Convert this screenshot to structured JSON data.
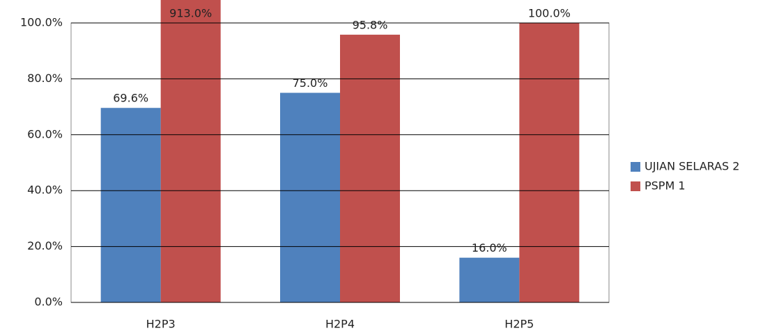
{
  "chart_data": {
    "type": "bar",
    "categories": [
      "H2P3",
      "H2P4",
      "H2P5"
    ],
    "series": [
      {
        "name": "UJIAN SELARAS 2",
        "color": "#4f81bd",
        "values": [
          69.6,
          75.0,
          16.0
        ],
        "value_labels": [
          "69.6%",
          "75.0%",
          "16.0%"
        ]
      },
      {
        "name": "PSPM 1",
        "color": "#c0504d",
        "values": [
          913.0,
          95.8,
          100.0
        ],
        "value_labels": [
          "913.0%",
          "95.8%",
          "100.0%"
        ]
      }
    ],
    "ylim": [
      0,
      100
    ],
    "yticks": [
      {
        "value": 0,
        "label": "0.0%"
      },
      {
        "value": 20,
        "label": "20.0%"
      },
      {
        "value": 40,
        "label": "40.0%"
      },
      {
        "value": 60,
        "label": "60.0%"
      },
      {
        "value": 80,
        "label": "80.0%"
      },
      {
        "value": 100,
        "label": "100.0%"
      }
    ],
    "grid": true,
    "legend": "right"
  }
}
